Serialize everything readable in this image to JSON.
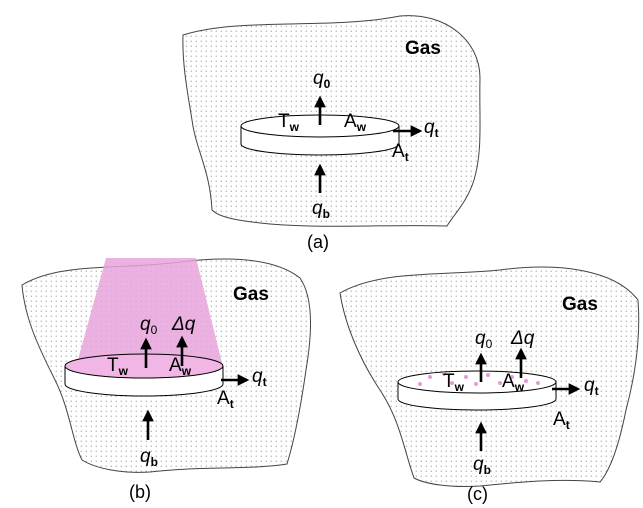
{
  "panels": {
    "a": {
      "caption": "(a)",
      "gas": "Gas",
      "tw": {
        "main": "T",
        "sub": "w"
      },
      "aw": {
        "main": "A",
        "sub": "w"
      },
      "at": {
        "main": "A",
        "sub": "t"
      },
      "q0": {
        "main": "q",
        "sub": "0"
      },
      "qt": {
        "main": "q",
        "sub": "t"
      },
      "qb": {
        "main": "q",
        "sub": "b"
      }
    },
    "b": {
      "caption": "(b)",
      "gas": "Gas",
      "tw": {
        "main": "T",
        "sub": "w"
      },
      "aw": {
        "main": "A",
        "sub": "w"
      },
      "at": {
        "main": "A",
        "sub": "t"
      },
      "q0": {
        "main": "q",
        "sub": "0"
      },
      "dq": "Δq",
      "qt": {
        "main": "q",
        "sub": "t"
      },
      "qb": {
        "main": "q",
        "sub": "b"
      }
    },
    "c": {
      "caption": "(c)",
      "gas": "Gas",
      "tw": {
        "main": "T",
        "sub": "w"
      },
      "aw": {
        "main": "A",
        "sub": "w"
      },
      "at": {
        "main": "A",
        "sub": "t"
      },
      "q0": {
        "main": "q",
        "sub": "0"
      },
      "dq": "Δq",
      "qt": {
        "main": "q",
        "sub": "t"
      },
      "qb": {
        "main": "q",
        "sub": "b"
      }
    }
  },
  "colors": {
    "beam": "#e6a3dc",
    "hot_surface": "#f1b6e6",
    "hot_spots": "#e39cd7",
    "dots": "#7a7a7a"
  }
}
